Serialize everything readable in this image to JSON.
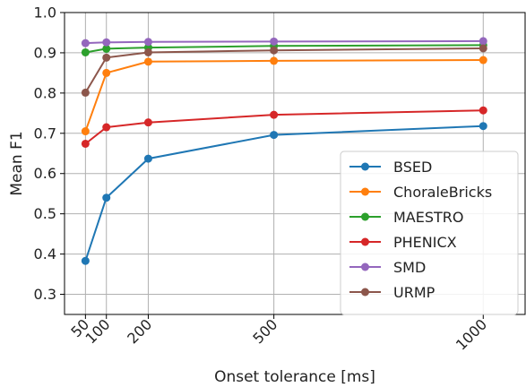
{
  "chart_data": {
    "type": "line",
    "title": "",
    "xlabel": "Onset tolerance [ms]",
    "ylabel": "Mean F1",
    "x": [
      50,
      100,
      200,
      500,
      1000
    ],
    "x_tick_labels": [
      "50",
      "100",
      "200",
      "500",
      "1000"
    ],
    "y_ticks": [
      0.3,
      0.4,
      0.5,
      0.6,
      0.7,
      0.8,
      0.9,
      1.0
    ],
    "y_tick_labels": [
      "0.3",
      "0.4",
      "0.5",
      "0.6",
      "0.7",
      "0.8",
      "0.9",
      "1.0"
    ],
    "xlim": [
      0,
      1100
    ],
    "ylim": [
      0.25,
      1.0
    ],
    "grid": true,
    "legend_position": "lower-right",
    "series": [
      {
        "name": "BSED",
        "color": "#1f77b4",
        "values": [
          0.383,
          0.54,
          0.637,
          0.696,
          0.718
        ]
      },
      {
        "name": "ChoraleBricks",
        "color": "#ff7f0e",
        "values": [
          0.705,
          0.85,
          0.878,
          0.88,
          0.882
        ]
      },
      {
        "name": "MAESTRO",
        "color": "#2ca02c",
        "values": [
          0.901,
          0.91,
          0.913,
          0.917,
          0.919
        ]
      },
      {
        "name": "PHENICX",
        "color": "#d62728",
        "values": [
          0.674,
          0.715,
          0.727,
          0.746,
          0.757
        ]
      },
      {
        "name": "SMD",
        "color": "#9467bd",
        "values": [
          0.924,
          0.926,
          0.927,
          0.928,
          0.929
        ]
      },
      {
        "name": "URMP",
        "color": "#8c564b",
        "values": [
          0.801,
          0.888,
          0.901,
          0.906,
          0.911
        ]
      }
    ]
  }
}
